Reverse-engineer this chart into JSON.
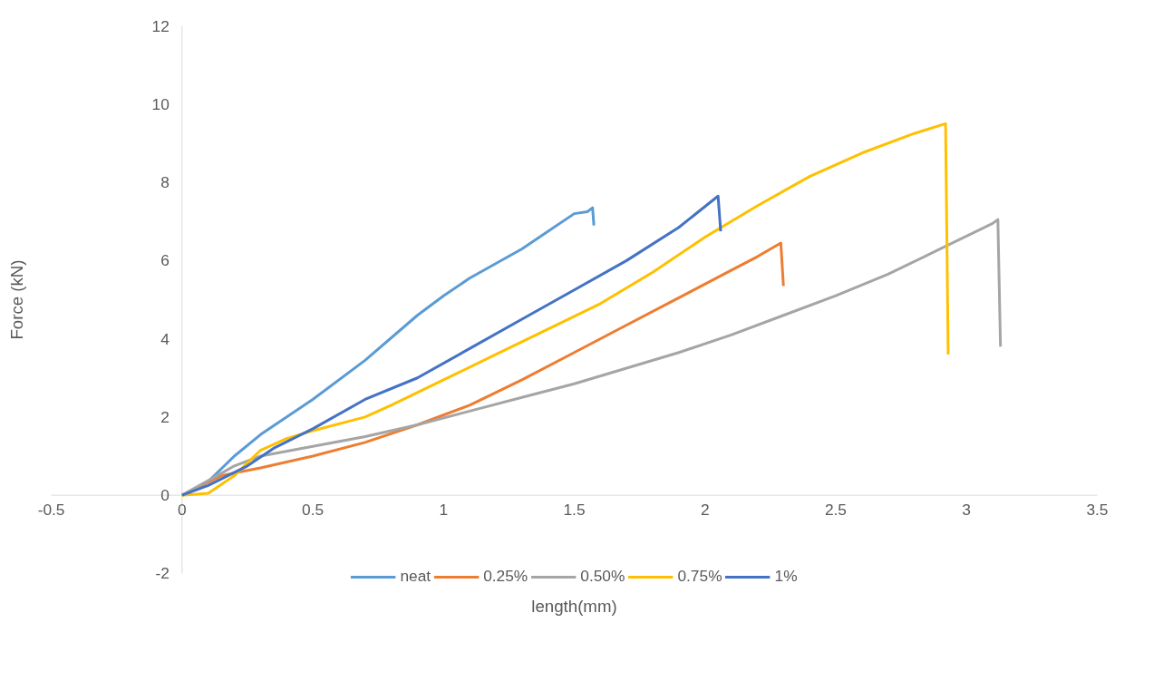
{
  "chart_data": {
    "type": "line",
    "xlabel": "length(mm)",
    "ylabel": "Force (kN)",
    "xlim": [
      -0.5,
      3.5
    ],
    "xticks": [
      -0.5,
      0,
      0.5,
      1,
      1.5,
      2,
      2.5,
      3,
      3.5
    ],
    "ylim": [
      -2,
      12
    ],
    "yticks": [
      -2,
      0,
      2,
      4,
      6,
      8,
      10,
      12
    ],
    "grid": false,
    "legend": "bottom",
    "marker": "none",
    "line_style": "solid",
    "series": [
      {
        "name": "neat",
        "color": "#5b9bd5",
        "x": [
          0,
          0.1,
          0.2,
          0.3,
          0.5,
          0.7,
          0.9,
          1.0,
          1.1,
          1.3,
          1.5,
          1.55,
          1.57,
          1.575
        ],
        "values": [
          0,
          0.35,
          1.0,
          1.55,
          2.45,
          3.45,
          4.6,
          5.1,
          5.55,
          6.3,
          7.2,
          7.25,
          7.35,
          6.9
        ]
      },
      {
        "name": "0.25%",
        "color": "#ed7d31",
        "x": [
          0,
          0.15,
          0.3,
          0.5,
          0.7,
          0.9,
          1.1,
          1.3,
          1.5,
          1.7,
          1.9,
          2.1,
          2.2,
          2.29,
          2.3
        ],
        "values": [
          0,
          0.5,
          0.7,
          1.0,
          1.35,
          1.8,
          2.3,
          2.95,
          3.65,
          4.35,
          5.05,
          5.75,
          6.1,
          6.45,
          5.35
        ]
      },
      {
        "name": "0.50%",
        "color": "#a5a5a5",
        "x": [
          0,
          0.2,
          0.3,
          0.5,
          0.7,
          0.9,
          1.1,
          1.3,
          1.5,
          1.7,
          1.9,
          2.1,
          2.3,
          2.5,
          2.7,
          2.9,
          3.1,
          3.12,
          3.13
        ],
        "values": [
          0,
          0.75,
          1.0,
          1.25,
          1.5,
          1.8,
          2.15,
          2.5,
          2.85,
          3.25,
          3.65,
          4.1,
          4.6,
          5.1,
          5.65,
          6.3,
          6.95,
          7.05,
          3.8
        ]
      },
      {
        "name": "0.75%",
        "color": "#ffc000",
        "x": [
          0,
          0.1,
          0.2,
          0.3,
          0.4,
          0.5,
          0.7,
          0.8,
          1.0,
          1.2,
          1.4,
          1.6,
          1.8,
          2.0,
          2.2,
          2.4,
          2.6,
          2.8,
          2.92,
          2.93
        ],
        "values": [
          0,
          0.05,
          0.5,
          1.15,
          1.45,
          1.65,
          2.0,
          2.3,
          2.95,
          3.6,
          4.25,
          4.9,
          5.7,
          6.6,
          7.4,
          8.15,
          8.75,
          9.25,
          9.5,
          3.6
        ]
      },
      {
        "name": "1%",
        "color": "#4472c4",
        "x": [
          0,
          0.1,
          0.25,
          0.35,
          0.5,
          0.7,
          0.9,
          1.1,
          1.3,
          1.5,
          1.7,
          1.9,
          2.05,
          2.06
        ],
        "values": [
          0,
          0.25,
          0.75,
          1.2,
          1.7,
          2.45,
          3.0,
          3.75,
          4.5,
          5.25,
          6.0,
          6.85,
          7.65,
          6.75
        ]
      }
    ]
  }
}
